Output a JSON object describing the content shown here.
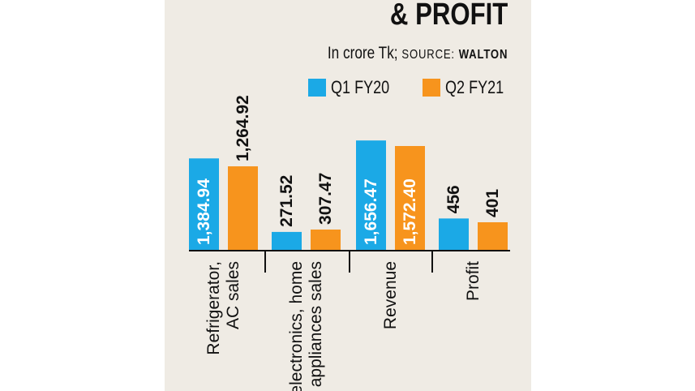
{
  "header": {
    "title": "& PROFIT",
    "unit": "In crore Tk;",
    "source_label": "SOURCE:",
    "source_name": "WALTON"
  },
  "colors": {
    "panel_bg": "#efebe4",
    "q1": "#1ba9e6",
    "q2": "#f7941d",
    "text": "#111111"
  },
  "chart_data": {
    "type": "bar",
    "categories": [
      [
        "Refrigerator,",
        "AC sales"
      ],
      [
        "electronics, home",
        "appliances sales"
      ],
      [
        "Revenue"
      ],
      [
        "Profit"
      ]
    ],
    "series": [
      {
        "name": "Q1 FY20",
        "values": [
          1384.94,
          271.52,
          1656.47,
          456
        ],
        "labels": [
          "1,384.94",
          "271.52",
          "1,656.47",
          "456"
        ]
      },
      {
        "name": "Q2 FY21",
        "values": [
          1264.92,
          307.47,
          1572.4,
          401
        ],
        "labels": [
          "1,264.92",
          "307.47",
          "1,572.40",
          "401"
        ]
      }
    ],
    "ylim": [
      0,
      1800
    ],
    "grid": false,
    "legend": "top-right",
    "note": "Profit bars drawn on a different visual scale than sales/revenue bars in the original"
  }
}
